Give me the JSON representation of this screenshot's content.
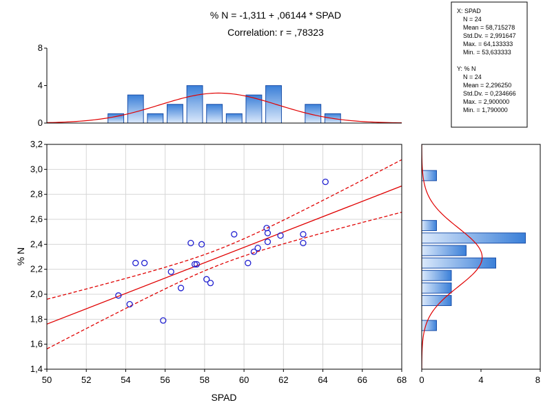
{
  "chart_data": {
    "type": "scatter",
    "title": "% N = -1,311 + ,06144 * SPAD",
    "subtitle": "Correlation: r = ,78323",
    "xlabel": "SPAD",
    "ylabel": "% N",
    "xlim": [
      50,
      68
    ],
    "ylim": [
      1.4,
      3.2
    ],
    "xticks": [
      "50",
      "52",
      "54",
      "56",
      "58",
      "60",
      "62",
      "64",
      "66",
      "68"
    ],
    "yticks": [
      "1,4",
      "1,6",
      "1,8",
      "2,0",
      "2,2",
      "2,4",
      "2,6",
      "2,8",
      "3,0",
      "3,2"
    ],
    "grid": true,
    "colors": {
      "points": "#1f1fd0",
      "fit": "#e00000",
      "bar_fill_light": "#dbe9fb",
      "bar_fill_dark": "#3a7fd8",
      "bar_edge": "#1b4fa8"
    },
    "fit": {
      "intercept": -1.311,
      "slope": 0.06144
    },
    "confidence_band": true,
    "points": [
      {
        "x": 53.63,
        "y": 1.99
      },
      {
        "x": 54.2,
        "y": 1.92
      },
      {
        "x": 54.5,
        "y": 2.25
      },
      {
        "x": 54.95,
        "y": 2.25
      },
      {
        "x": 55.9,
        "y": 1.79
      },
      {
        "x": 56.3,
        "y": 2.18
      },
      {
        "x": 56.8,
        "y": 2.05
      },
      {
        "x": 57.3,
        "y": 2.41
      },
      {
        "x": 57.5,
        "y": 2.24
      },
      {
        "x": 57.6,
        "y": 2.24
      },
      {
        "x": 57.85,
        "y": 2.4
      },
      {
        "x": 58.1,
        "y": 2.12
      },
      {
        "x": 58.3,
        "y": 2.09
      },
      {
        "x": 59.5,
        "y": 2.48
      },
      {
        "x": 60.2,
        "y": 2.25
      },
      {
        "x": 60.5,
        "y": 2.34
      },
      {
        "x": 60.7,
        "y": 2.37
      },
      {
        "x": 61.15,
        "y": 2.53
      },
      {
        "x": 61.2,
        "y": 2.42
      },
      {
        "x": 61.2,
        "y": 2.49
      },
      {
        "x": 61.85,
        "y": 2.47
      },
      {
        "x": 63.0,
        "y": 2.41
      },
      {
        "x": 63.0,
        "y": 2.48
      },
      {
        "x": 64.13,
        "y": 2.9
      }
    ],
    "top_histogram": {
      "ylim": [
        0,
        8
      ],
      "yticks": [
        "0",
        "4",
        "8"
      ],
      "bin_edges": [
        53,
        54,
        55,
        56,
        57,
        58,
        59,
        60,
        61,
        62,
        63,
        64,
        65
      ],
      "counts": [
        1,
        3,
        1,
        2,
        4,
        2,
        1,
        3,
        4,
        0,
        2,
        1
      ],
      "normal_curve": {
        "mean": 58.715278,
        "sd": 2.991647,
        "n": 24,
        "bin_width": 1
      }
    },
    "right_histogram": {
      "xlim": [
        0,
        8
      ],
      "xticks": [
        "0",
        "4",
        "8"
      ],
      "bin_edges": [
        1.7,
        1.8,
        1.9,
        2.0,
        2.1,
        2.2,
        2.3,
        2.4,
        2.5,
        2.6,
        2.7,
        2.8,
        2.9,
        3.0
      ],
      "counts": [
        1,
        0,
        2,
        2,
        2,
        5,
        3,
        7,
        1,
        0,
        0,
        0,
        1
      ],
      "normal_curve": {
        "mean": 2.29625,
        "sd": 0.234666,
        "n": 24,
        "bin_width": 0.1
      }
    },
    "stats_box": [
      "X:  SPAD",
      "N = 24",
      "Mean = 58,715278",
      "Std.Dv. = 2,991647",
      "Max. = 64,133333",
      "Min. = 53,633333",
      "Y:  % N",
      "N = 24",
      "Mean = 2,296250",
      "Std.Dv. = 0,234666",
      "Max. = 2,900000",
      "Min. = 1,790000"
    ]
  }
}
